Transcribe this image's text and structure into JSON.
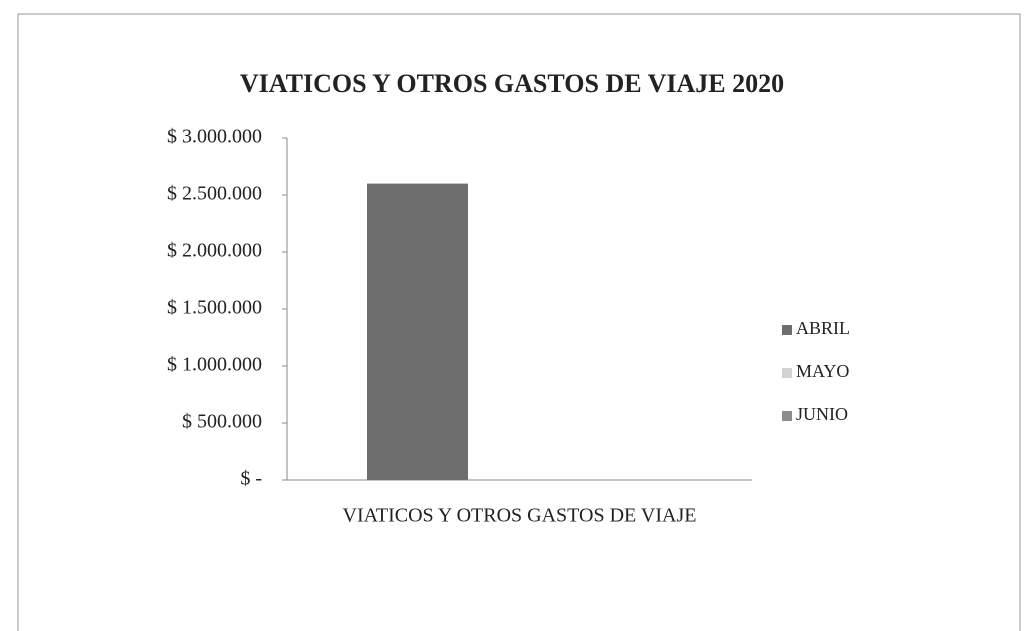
{
  "chart_data": {
    "type": "bar",
    "title": "VIATICOS Y OTROS GASTOS DE VIAJE 2020",
    "categories": [
      "VIATICOS Y OTROS GASTOS DE VIAJE"
    ],
    "series": [
      {
        "name": "ABRIL",
        "color": "#6e6e6e",
        "values": [
          2600000
        ]
      },
      {
        "name": "MAYO",
        "color": "#d2d2d2",
        "values": [
          0
        ]
      },
      {
        "name": "JUNIO",
        "color": "#8c8c8c",
        "values": [
          0
        ]
      }
    ],
    "ylim": [
      0,
      3000000
    ],
    "yticks": [
      {
        "value": 0,
        "label": "$ -"
      },
      {
        "value": 500000,
        "label": "$ 500.000"
      },
      {
        "value": 1000000,
        "label": "$ 1.000.000"
      },
      {
        "value": 1500000,
        "label": "$ 1.500.000"
      },
      {
        "value": 2000000,
        "label": "$ 2.000.000"
      },
      {
        "value": 2500000,
        "label": "$ 2.500.000"
      },
      {
        "value": 3000000,
        "label": "$ 3.000.000"
      }
    ],
    "grid": false,
    "legend": "right"
  }
}
